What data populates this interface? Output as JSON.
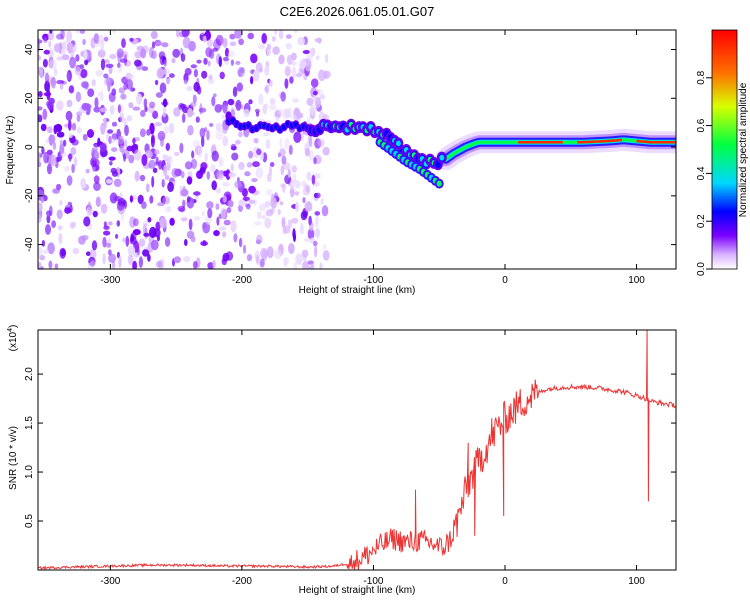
{
  "title": "C2E6.2026.061.05.01.G07",
  "chart_data": [
    {
      "type": "heatmap",
      "title": "C2E6.2026.061.05.01.G07",
      "xlabel": "Height of straight line (km)",
      "ylabel": "Frequency (Hz)",
      "xlim": [
        -355,
        130
      ],
      "ylim": [
        -50,
        48
      ],
      "xticks": [
        -300,
        -200,
        -100,
        0,
        100
      ],
      "yticks": [
        -40,
        -20,
        0,
        20,
        40
      ],
      "ridge": {
        "description": "frequency of the dominant spectral ridge vs height",
        "x": [
          -210,
          -200,
          -180,
          -160,
          -140,
          -120,
          -100,
          -90,
          -80,
          -70,
          -60,
          -50,
          -45,
          -40,
          -30,
          -20,
          -10,
          0,
          20,
          40,
          60,
          80,
          90,
          100,
          110,
          130
        ],
        "y": [
          10,
          9,
          8,
          8,
          8,
          8,
          7,
          4,
          0,
          -4,
          -6,
          -6,
          -5,
          -3,
          0,
          2,
          2,
          2,
          2,
          2,
          2,
          2.5,
          3,
          2.5,
          2,
          2
        ]
      },
      "branch": {
        "description": "secondary downward branch",
        "x": [
          -95,
          -85,
          -75,
          -65,
          -55,
          -50
        ],
        "y": [
          2,
          -2,
          -6,
          -9,
          -13,
          -15
        ]
      },
      "noise_region": {
        "x": [
          -355,
          -135
        ],
        "y": [
          -50,
          48
        ]
      },
      "colorbar": {
        "label": "Normalized spectral amplitude",
        "range": [
          0,
          1
        ],
        "ticks": [
          "0.0",
          "0.2",
          "0.4",
          "0.6",
          "0.8"
        ],
        "colors": [
          "#ffffff",
          "#d9b3ff",
          "#7a00ff",
          "#0000ff",
          "#00d8ff",
          "#00ff40",
          "#d8ff00",
          "#ff7000",
          "#ff0000"
        ]
      }
    },
    {
      "type": "line",
      "xlabel": "Height of straight line (km)",
      "ylabel": "SNR (10 * v/v)",
      "scale_label": "(x10",
      "scale_exp": "4",
      "scale_close": ")",
      "xlim": [
        -355,
        130
      ],
      "ylim": [
        0,
        2.45
      ],
      "xticks": [
        -300,
        -200,
        -100,
        0,
        100
      ],
      "yticks": [
        "0.5",
        "1.0",
        "1.5",
        "2.0"
      ],
      "series": [
        {
          "name": "SNR",
          "color": "#ee3333",
          "x": [
            -355,
            -330,
            -300,
            -270,
            -240,
            -210,
            -180,
            -150,
            -130,
            -115,
            -105,
            -95,
            -85,
            -75,
            -65,
            -55,
            -48,
            -42,
            -36,
            -30,
            -24,
            -18,
            -12,
            -6,
            0,
            6,
            12,
            18,
            24,
            30,
            40,
            50,
            60,
            70,
            80,
            90,
            100,
            105,
            108,
            112,
            120,
            130
          ],
          "y": [
            0.02,
            0.03,
            0.04,
            0.05,
            0.05,
            0.04,
            0.04,
            0.03,
            0.04,
            0.08,
            0.15,
            0.25,
            0.32,
            0.28,
            0.3,
            0.27,
            0.22,
            0.3,
            0.5,
            0.8,
            1.0,
            1.15,
            1.3,
            1.45,
            1.55,
            1.62,
            1.7,
            1.76,
            1.8,
            1.84,
            1.86,
            1.87,
            1.87,
            1.86,
            1.84,
            1.82,
            1.78,
            1.76,
            1.74,
            1.72,
            1.7,
            1.68
          ],
          "spikes": [
            {
              "x": 108,
              "y": 2.45
            },
            {
              "x": 109,
              "y": 0.7
            },
            {
              "x": -68,
              "y": 0.82
            },
            {
              "x": -28,
              "y": 1.3
            },
            {
              "x": -10,
              "y": 1.55
            },
            {
              "x": -23,
              "y": 0.35
            },
            {
              "x": -1,
              "y": 0.55
            }
          ]
        }
      ]
    }
  ]
}
